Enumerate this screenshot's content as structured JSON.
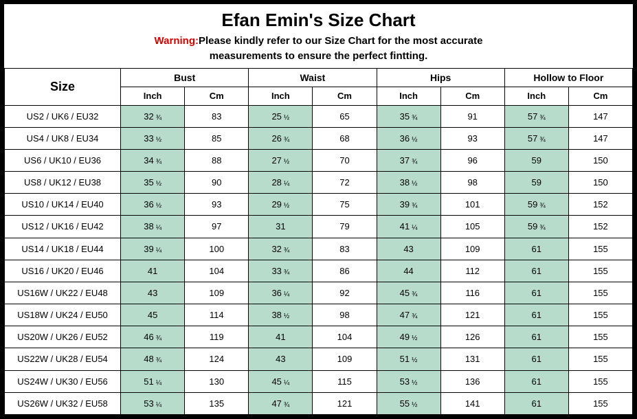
{
  "colors": {
    "border": "#000000",
    "inch_bg": "#b8dccc",
    "warning_label": "#d40000",
    "text": "#000000",
    "background": "#ffffff"
  },
  "header": {
    "title": "Efan Emin's Size Chart",
    "warning_label": "Warning:",
    "warning_line1": "Please kindly refer to our Size Chart for the most accurate",
    "warning_line2": "measurements to ensure the perfect fintting."
  },
  "table": {
    "size_label": "Size",
    "groups": [
      "Bust",
      "Waist",
      "Hips",
      "Hollow to Floor"
    ],
    "units": [
      "Inch",
      "Cm"
    ],
    "rows": [
      {
        "size": "US2 / UK6 / EU32",
        "bust_in": "32",
        "bust_in_frac": "¾",
        "bust_cm": "83",
        "waist_in": "25",
        "waist_in_frac": "½",
        "waist_cm": "65",
        "hips_in": "35",
        "hips_in_frac": "¾",
        "hips_cm": "91",
        "htf_in": "57",
        "htf_in_frac": "¾",
        "htf_cm": "147"
      },
      {
        "size": "US4 / UK8 / EU34",
        "bust_in": "33",
        "bust_in_frac": "½",
        "bust_cm": "85",
        "waist_in": "26",
        "waist_in_frac": "¾",
        "waist_cm": "68",
        "hips_in": "36",
        "hips_in_frac": "½",
        "hips_cm": "93",
        "htf_in": "57",
        "htf_in_frac": "¾",
        "htf_cm": "147"
      },
      {
        "size": "US6 / UK10 / EU36",
        "bust_in": "34",
        "bust_in_frac": "¾",
        "bust_cm": "88",
        "waist_in": "27",
        "waist_in_frac": "½",
        "waist_cm": "70",
        "hips_in": "37",
        "hips_in_frac": "¾",
        "hips_cm": "96",
        "htf_in": "59",
        "htf_in_frac": "",
        "htf_cm": "150"
      },
      {
        "size": "US8 / UK12 / EU38",
        "bust_in": "35",
        "bust_in_frac": "½",
        "bust_cm": "90",
        "waist_in": "28",
        "waist_in_frac": "¼",
        "waist_cm": "72",
        "hips_in": "38",
        "hips_in_frac": "½",
        "hips_cm": "98",
        "htf_in": "59",
        "htf_in_frac": "",
        "htf_cm": "150"
      },
      {
        "size": "US10 / UK14 / EU40",
        "bust_in": "36",
        "bust_in_frac": "½",
        "bust_cm": "93",
        "waist_in": "29",
        "waist_in_frac": "½",
        "waist_cm": "75",
        "hips_in": "39",
        "hips_in_frac": "¾",
        "hips_cm": "101",
        "htf_in": "59",
        "htf_in_frac": "¾",
        "htf_cm": "152"
      },
      {
        "size": "US12 / UK16 / EU42",
        "bust_in": "38",
        "bust_in_frac": "¼",
        "bust_cm": "97",
        "waist_in": "31",
        "waist_in_frac": "",
        "waist_cm": "79",
        "hips_in": "41",
        "hips_in_frac": "¼",
        "hips_cm": "105",
        "htf_in": "59",
        "htf_in_frac": "¾",
        "htf_cm": "152"
      },
      {
        "size": "US14 / UK18 / EU44",
        "bust_in": "39",
        "bust_in_frac": "¼",
        "bust_cm": "100",
        "waist_in": "32",
        "waist_in_frac": "¾",
        "waist_cm": "83",
        "hips_in": "43",
        "hips_in_frac": "",
        "hips_cm": "109",
        "htf_in": "61",
        "htf_in_frac": "",
        "htf_cm": "155"
      },
      {
        "size": "US16 / UK20 / EU46",
        "bust_in": "41",
        "bust_in_frac": "",
        "bust_cm": "104",
        "waist_in": "33",
        "waist_in_frac": "¾",
        "waist_cm": "86",
        "hips_in": "44",
        "hips_in_frac": "",
        "hips_cm": "112",
        "htf_in": "61",
        "htf_in_frac": "",
        "htf_cm": "155"
      },
      {
        "size": "US16W / UK22 / EU48",
        "bust_in": "43",
        "bust_in_frac": "",
        "bust_cm": "109",
        "waist_in": "36",
        "waist_in_frac": "¼",
        "waist_cm": "92",
        "hips_in": "45",
        "hips_in_frac": "¾",
        "hips_cm": "116",
        "htf_in": "61",
        "htf_in_frac": "",
        "htf_cm": "155"
      },
      {
        "size": "US18W / UK24 / EU50",
        "bust_in": "45",
        "bust_in_frac": "",
        "bust_cm": "114",
        "waist_in": "38",
        "waist_in_frac": "½",
        "waist_cm": "98",
        "hips_in": "47",
        "hips_in_frac": "¾",
        "hips_cm": "121",
        "htf_in": "61",
        "htf_in_frac": "",
        "htf_cm": "155"
      },
      {
        "size": "US20W / UK26 / EU52",
        "bust_in": "46",
        "bust_in_frac": "¾",
        "bust_cm": "119",
        "waist_in": "41",
        "waist_in_frac": "",
        "waist_cm": "104",
        "hips_in": "49",
        "hips_in_frac": "½",
        "hips_cm": "126",
        "htf_in": "61",
        "htf_in_frac": "",
        "htf_cm": "155"
      },
      {
        "size": "US22W / UK28 / EU54",
        "bust_in": "48",
        "bust_in_frac": "¾",
        "bust_cm": "124",
        "waist_in": "43",
        "waist_in_frac": "",
        "waist_cm": "109",
        "hips_in": "51",
        "hips_in_frac": "½",
        "hips_cm": "131",
        "htf_in": "61",
        "htf_in_frac": "",
        "htf_cm": "155"
      },
      {
        "size": "US24W / UK30 / EU56",
        "bust_in": "51",
        "bust_in_frac": "¼",
        "bust_cm": "130",
        "waist_in": "45",
        "waist_in_frac": "¼",
        "waist_cm": "115",
        "hips_in": "53",
        "hips_in_frac": "½",
        "hips_cm": "136",
        "htf_in": "61",
        "htf_in_frac": "",
        "htf_cm": "155"
      },
      {
        "size": "US26W / UK32 / EU58",
        "bust_in": "53",
        "bust_in_frac": "¼",
        "bust_cm": "135",
        "waist_in": "47",
        "waist_in_frac": "¾",
        "waist_cm": "121",
        "hips_in": "55",
        "hips_in_frac": "½",
        "hips_cm": "141",
        "htf_in": "61",
        "htf_in_frac": "",
        "htf_cm": "155"
      }
    ]
  }
}
